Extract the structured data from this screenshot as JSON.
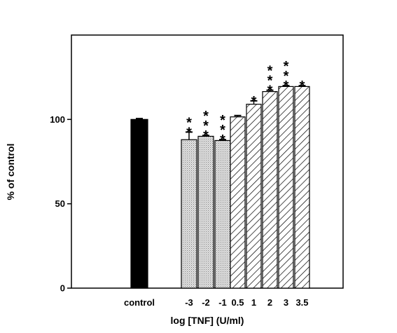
{
  "chart_data": {
    "type": "bar",
    "xlabel": "log [TNF] (U/ml)",
    "ylabel": "% of control",
    "ylim": [
      0,
      150
    ],
    "yticks": [
      0,
      50,
      100
    ],
    "grid": false,
    "categories": [
      "control",
      "-3",
      "-2",
      "-1",
      "0.5",
      "1",
      "2",
      "3",
      "3.5"
    ],
    "values": [
      100,
      88,
      90,
      87.5,
      101.5,
      109,
      116.5,
      119.5,
      119.5
    ],
    "errors": [
      0.5,
      4.5,
      0.5,
      0.5,
      0.8,
      2,
      0.8,
      0.5,
      0.5
    ],
    "significance": [
      "",
      "**",
      "***",
      "***",
      "",
      "*",
      "***",
      "***",
      "*"
    ],
    "fills": [
      "solid",
      "dotted",
      "dotted",
      "dotted",
      "hatched",
      "hatched",
      "hatched",
      "hatched",
      "hatched"
    ],
    "colors": {
      "bar_solid": "#000000",
      "bar_dotted": "#d8d8d8",
      "hatch": "#000000",
      "axis": "#000000"
    }
  }
}
